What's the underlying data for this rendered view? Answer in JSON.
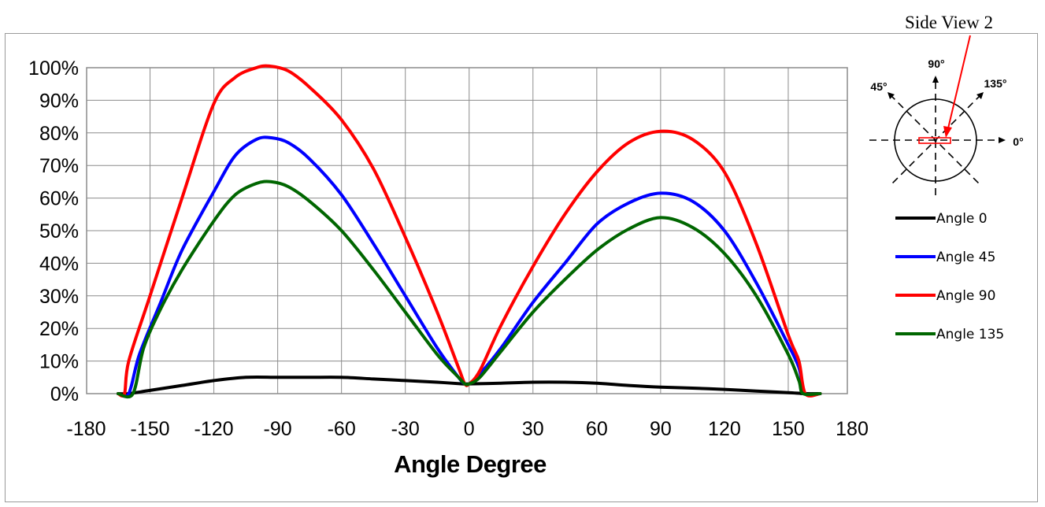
{
  "chart_data": {
    "type": "line",
    "xlabel": "Angle Degree",
    "ylabel": "",
    "xlim": [
      -180,
      180
    ],
    "ylim": [
      0,
      100
    ],
    "x_ticks": [
      "-180",
      "-150",
      "-120",
      "-90",
      "-60",
      "-30",
      "0",
      "30",
      "60",
      "90",
      "120",
      "150",
      "180"
    ],
    "y_ticks": [
      "0%",
      "10%",
      "20%",
      "30%",
      "40%",
      "50%",
      "60%",
      "70%",
      "80%",
      "90%",
      "100%"
    ],
    "grid": true,
    "legend_position": "right",
    "series": [
      {
        "name": "Angle 0",
        "color": "#000000",
        "points": [
          [
            -165,
            0
          ],
          [
            -160,
            0
          ],
          [
            -150,
            1
          ],
          [
            -135,
            2.5
          ],
          [
            -120,
            4
          ],
          [
            -105,
            5
          ],
          [
            -90,
            5
          ],
          [
            -75,
            5
          ],
          [
            -60,
            5
          ],
          [
            -45,
            4.5
          ],
          [
            -30,
            4
          ],
          [
            -15,
            3.5
          ],
          [
            -3,
            3
          ],
          [
            0,
            3
          ],
          [
            15,
            3.2
          ],
          [
            30,
            3.5
          ],
          [
            45,
            3.5
          ],
          [
            60,
            3.2
          ],
          [
            75,
            2.5
          ],
          [
            90,
            2
          ],
          [
            105,
            1.7
          ],
          [
            120,
            1.3
          ],
          [
            135,
            0.8
          ],
          [
            150,
            0.3
          ],
          [
            158,
            0
          ],
          [
            165,
            0
          ]
        ]
      },
      {
        "name": "Angle 45",
        "color": "#0000ff",
        "points": [
          [
            -165,
            0
          ],
          [
            -160,
            0
          ],
          [
            -155,
            12
          ],
          [
            -145,
            28
          ],
          [
            -135,
            44
          ],
          [
            -120,
            62
          ],
          [
            -110,
            73
          ],
          [
            -100,
            78
          ],
          [
            -93,
            78.5
          ],
          [
            -85,
            77
          ],
          [
            -75,
            72
          ],
          [
            -60,
            61
          ],
          [
            -45,
            46
          ],
          [
            -30,
            30
          ],
          [
            -15,
            14
          ],
          [
            -5,
            5
          ],
          [
            -2,
            3
          ],
          [
            0,
            3
          ],
          [
            5,
            6
          ],
          [
            15,
            14
          ],
          [
            30,
            28
          ],
          [
            45,
            40
          ],
          [
            60,
            52
          ],
          [
            75,
            58.5
          ],
          [
            90,
            61.5
          ],
          [
            105,
            59
          ],
          [
            120,
            50
          ],
          [
            135,
            34
          ],
          [
            150,
            15
          ],
          [
            155,
            8
          ],
          [
            158,
            0
          ],
          [
            165,
            0
          ]
        ]
      },
      {
        "name": "Angle 90",
        "color": "#ff0000",
        "points": [
          [
            -165,
            0
          ],
          [
            -162,
            0
          ],
          [
            -160,
            10
          ],
          [
            -150,
            30
          ],
          [
            -135,
            60
          ],
          [
            -120,
            89
          ],
          [
            -110,
            97
          ],
          [
            -100,
            100
          ],
          [
            -94,
            100.5
          ],
          [
            -85,
            99
          ],
          [
            -75,
            94
          ],
          [
            -60,
            84
          ],
          [
            -45,
            69
          ],
          [
            -30,
            48
          ],
          [
            -15,
            25
          ],
          [
            -5,
            8
          ],
          [
            -2,
            3
          ],
          [
            0,
            3
          ],
          [
            5,
            7
          ],
          [
            15,
            21
          ],
          [
            30,
            39
          ],
          [
            45,
            55
          ],
          [
            60,
            68
          ],
          [
            75,
            77
          ],
          [
            90,
            80.5
          ],
          [
            105,
            78
          ],
          [
            120,
            68
          ],
          [
            135,
            46
          ],
          [
            150,
            18
          ],
          [
            155,
            10
          ],
          [
            158,
            0
          ],
          [
            165,
            0
          ]
        ]
      },
      {
        "name": "Angle 135",
        "color": "#006600",
        "points": [
          [
            -165,
            0
          ],
          [
            -158,
            0
          ],
          [
            -153,
            14
          ],
          [
            -145,
            26
          ],
          [
            -135,
            38
          ],
          [
            -120,
            53
          ],
          [
            -110,
            61
          ],
          [
            -100,
            64.5
          ],
          [
            -93,
            65
          ],
          [
            -85,
            63.5
          ],
          [
            -75,
            59
          ],
          [
            -60,
            50
          ],
          [
            -45,
            38
          ],
          [
            -30,
            25
          ],
          [
            -15,
            12
          ],
          [
            -5,
            5
          ],
          [
            -2,
            3
          ],
          [
            0,
            3
          ],
          [
            5,
            5
          ],
          [
            15,
            13
          ],
          [
            30,
            25
          ],
          [
            45,
            35
          ],
          [
            60,
            44
          ],
          [
            75,
            50.5
          ],
          [
            90,
            54
          ],
          [
            105,
            51
          ],
          [
            120,
            43
          ],
          [
            135,
            30
          ],
          [
            150,
            12
          ],
          [
            155,
            4
          ],
          [
            157,
            0
          ],
          [
            165,
            0
          ]
        ]
      }
    ]
  },
  "inset_diagram": {
    "labels": {
      "deg_90": "90°",
      "deg_45": "45°",
      "deg_135": "135°",
      "deg_0": "0°"
    },
    "callout": "Side View 2"
  }
}
